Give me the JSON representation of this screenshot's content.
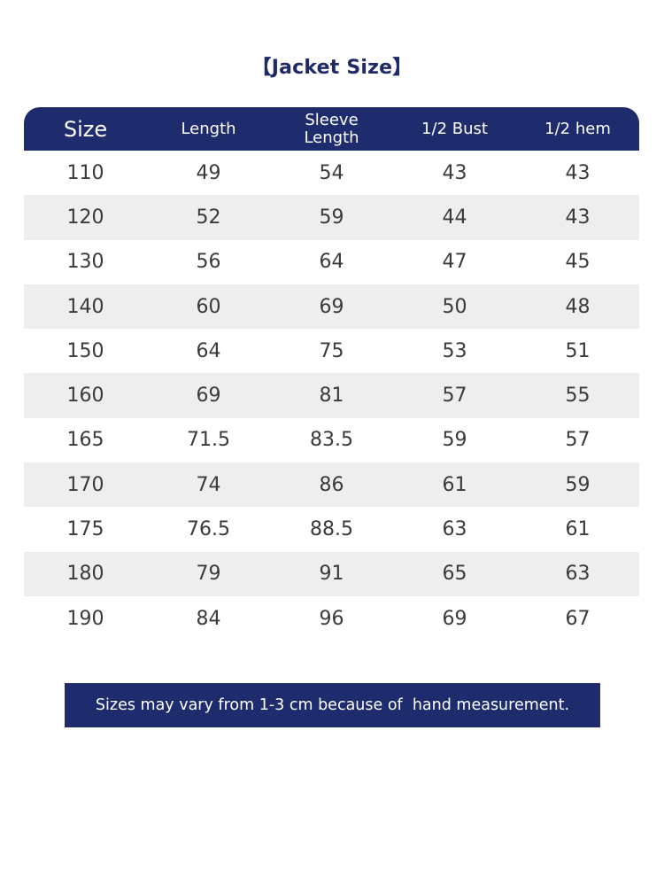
{
  "title": "【Jacket Size】",
  "table": {
    "headers": [
      "Size",
      "Length",
      "Sleeve Length",
      "1/2 Bust",
      "1/2 hem"
    ],
    "header_sleeve_line1": "Sleeve",
    "header_sleeve_line2": "Length",
    "rows": [
      [
        "110",
        "49",
        "54",
        "43",
        "43"
      ],
      [
        "120",
        "52",
        "59",
        "44",
        "43"
      ],
      [
        "130",
        "56",
        "64",
        "47",
        "45"
      ],
      [
        "140",
        "60",
        "69",
        "50",
        "48"
      ],
      [
        "150",
        "64",
        "75",
        "53",
        "51"
      ],
      [
        "160",
        "69",
        "81",
        "57",
        "55"
      ],
      [
        "165",
        "71.5",
        "83.5",
        "59",
        "57"
      ],
      [
        "170",
        "74",
        "86",
        "61",
        "59"
      ],
      [
        "175",
        "76.5",
        "88.5",
        "63",
        "61"
      ],
      [
        "180",
        "79",
        "91",
        "65",
        "63"
      ],
      [
        "190",
        "84",
        "96",
        "69",
        "67"
      ]
    ]
  },
  "note": "Sizes may vary from 1-3 cm because of  hand measurement.",
  "colors": {
    "header_bg": "#1e2c6e",
    "alt_row_bg": "#eeeeee",
    "title_color": "#1e2a66"
  }
}
